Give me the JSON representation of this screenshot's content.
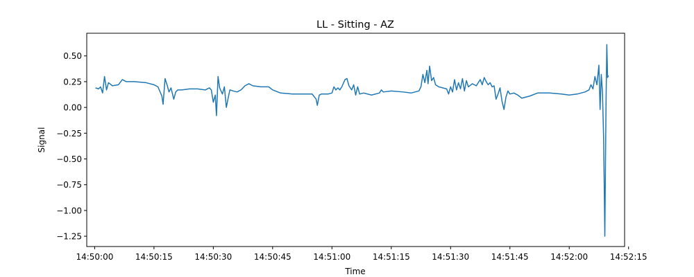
{
  "chart_data": {
    "type": "line",
    "title": "LL - Sitting - AZ",
    "xlabel": "Time",
    "ylabel": "Signal",
    "xlim": [
      "14:49:58",
      "14:52:14"
    ],
    "ylim": [
      -1.35,
      0.72
    ],
    "x_ticks": [
      "14:50:00",
      "14:50:15",
      "14:50:30",
      "14:50:45",
      "14:51:00",
      "14:51:15",
      "14:51:30",
      "14:51:45",
      "14:52:00",
      "14:52:15"
    ],
    "y_ticks": [
      0.5,
      0.25,
      0.0,
      -0.25,
      -0.5,
      -0.75,
      -1.0,
      -1.25
    ],
    "y_tick_labels": [
      "0.50",
      "0.25",
      "0.00",
      "−0.25",
      "−0.50",
      "−0.75",
      "−1.00",
      "−1.25"
    ],
    "grid": false,
    "legend": "none",
    "series": [
      {
        "color": "#1f77b4",
        "points": [
          [
            "14:50:00.2",
            0.19
          ],
          [
            "14:50:01.0",
            0.18
          ],
          [
            "14:50:01.5",
            0.2
          ],
          [
            "14:50:02.0",
            0.14
          ],
          [
            "14:50:02.5",
            0.3
          ],
          [
            "14:50:03.0",
            0.17
          ],
          [
            "14:50:03.5",
            0.24
          ],
          [
            "14:50:04.5",
            0.21
          ],
          [
            "14:50:06.0",
            0.22
          ],
          [
            "14:50:07.0",
            0.27
          ],
          [
            "14:50:08.0",
            0.25
          ],
          [
            "14:50:10.0",
            0.25
          ],
          [
            "14:50:13.0",
            0.24
          ],
          [
            "14:50:15.0",
            0.22
          ],
          [
            "14:50:16.0",
            0.2
          ],
          [
            "14:50:17.0",
            0.11
          ],
          [
            "14:50:17.3",
            0.03
          ],
          [
            "14:50:17.8",
            0.28
          ],
          [
            "14:50:18.3",
            0.22
          ],
          [
            "14:50:18.8",
            0.15
          ],
          [
            "14:50:19.3",
            0.19
          ],
          [
            "14:50:20.0",
            0.08
          ],
          [
            "14:50:20.5",
            0.15
          ],
          [
            "14:50:21.0",
            0.17
          ],
          [
            "14:50:22.0",
            0.17
          ],
          [
            "14:50:24.0",
            0.18
          ],
          [
            "14:50:26.0",
            0.18
          ],
          [
            "14:50:28.0",
            0.17
          ],
          [
            "14:50:29.0",
            0.19
          ],
          [
            "14:50:29.5",
            0.17
          ],
          [
            "14:50:30.0",
            0.05
          ],
          [
            "14:50:30.5",
            0.12
          ],
          [
            "14:50:30.8",
            -0.08
          ],
          [
            "14:50:31.2",
            0.3
          ],
          [
            "14:50:31.6",
            0.19
          ],
          [
            "14:50:32.3",
            0.13
          ],
          [
            "14:50:32.8",
            0.2
          ],
          [
            "14:50:33.3",
            0.0
          ],
          [
            "14:50:33.8",
            0.1
          ],
          [
            "14:50:34.2",
            0.17
          ],
          [
            "14:50:35.0",
            0.16
          ],
          [
            "14:50:36.0",
            0.15
          ],
          [
            "14:50:37.0",
            0.17
          ],
          [
            "14:50:38.0",
            0.21
          ],
          [
            "14:50:39.0",
            0.23
          ],
          [
            "14:50:40.0",
            0.21
          ],
          [
            "14:50:42.0",
            0.2
          ],
          [
            "14:50:44.0",
            0.2
          ],
          [
            "14:50:45.0",
            0.17
          ],
          [
            "14:50:47.0",
            0.14
          ],
          [
            "14:50:50.0",
            0.13
          ],
          [
            "14:50:53.0",
            0.13
          ],
          [
            "14:50:55.0",
            0.13
          ],
          [
            "14:50:56.0",
            0.08
          ],
          [
            "14:50:56.3",
            0.02
          ],
          [
            "14:50:56.8",
            0.12
          ],
          [
            "14:50:57.3",
            0.13
          ],
          [
            "14:50:59.0",
            0.13
          ],
          [
            "14:51:00.0",
            0.14
          ],
          [
            "14:51:00.5",
            0.2
          ],
          [
            "14:51:01.0",
            0.17
          ],
          [
            "14:51:01.5",
            0.19
          ],
          [
            "14:51:02.0",
            0.17
          ],
          [
            "14:51:02.5",
            0.2
          ],
          [
            "14:51:03.3",
            0.27
          ],
          [
            "14:51:03.8",
            0.28
          ],
          [
            "14:51:04.3",
            0.21
          ],
          [
            "14:51:05.0",
            0.17
          ],
          [
            "14:51:05.5",
            0.22
          ],
          [
            "14:51:06.0",
            0.12
          ],
          [
            "14:51:06.5",
            0.2
          ],
          [
            "14:51:07.0",
            0.13
          ],
          [
            "14:51:08.0",
            0.14
          ],
          [
            "14:51:10.0",
            0.12
          ],
          [
            "14:51:12.0",
            0.14
          ],
          [
            "14:51:12.5",
            0.17
          ],
          [
            "14:51:13.0",
            0.15
          ],
          [
            "14:51:15.0",
            0.16
          ],
          [
            "14:51:18.0",
            0.15
          ],
          [
            "14:51:20.0",
            0.14
          ],
          [
            "14:51:22.0",
            0.16
          ],
          [
            "14:51:22.5",
            0.2
          ],
          [
            "14:51:23.0",
            0.32
          ],
          [
            "14:51:23.5",
            0.24
          ],
          [
            "14:51:24.0",
            0.36
          ],
          [
            "14:51:24.3",
            0.23
          ],
          [
            "14:51:24.7",
            0.4
          ],
          [
            "14:51:25.2",
            0.26
          ],
          [
            "14:51:25.7",
            0.29
          ],
          [
            "14:51:26.2",
            0.22
          ],
          [
            "14:51:27.0",
            0.2
          ],
          [
            "14:51:28.0",
            0.19
          ],
          [
            "14:51:29.0",
            0.18
          ],
          [
            "14:51:29.5",
            0.13
          ],
          [
            "14:51:30.0",
            0.2
          ],
          [
            "14:51:30.5",
            0.15
          ],
          [
            "14:51:31.0",
            0.27
          ],
          [
            "14:51:31.5",
            0.17
          ],
          [
            "14:51:32.0",
            0.24
          ],
          [
            "14:51:32.5",
            0.18
          ],
          [
            "14:51:33.0",
            0.28
          ],
          [
            "14:51:33.5",
            0.16
          ],
          [
            "14:51:34.0",
            0.26
          ],
          [
            "14:51:34.5",
            0.2
          ],
          [
            "14:51:35.5",
            0.23
          ],
          [
            "14:51:36.5",
            0.21
          ],
          [
            "14:51:37.5",
            0.27
          ],
          [
            "14:51:38.0",
            0.22
          ],
          [
            "14:51:38.5",
            0.29
          ],
          [
            "14:51:39.0",
            0.25
          ],
          [
            "14:51:39.5",
            0.22
          ],
          [
            "14:51:40.0",
            0.24
          ],
          [
            "14:51:40.5",
            0.2
          ],
          [
            "14:51:41.0",
            0.21
          ],
          [
            "14:51:41.5",
            0.08
          ],
          [
            "14:51:42.0",
            0.13
          ],
          [
            "14:51:42.5",
            0.19
          ],
          [
            "14:51:43.0",
            0.06
          ],
          [
            "14:51:43.5",
            -0.02
          ],
          [
            "14:51:44.0",
            0.1
          ],
          [
            "14:51:44.5",
            0.16
          ],
          [
            "14:51:45.0",
            0.13
          ],
          [
            "14:51:46.0",
            0.14
          ],
          [
            "14:51:47.0",
            0.12
          ],
          [
            "14:51:48.0",
            0.09
          ],
          [
            "14:51:50.0",
            0.11
          ],
          [
            "14:51:52.0",
            0.14
          ],
          [
            "14:51:55.0",
            0.14
          ],
          [
            "14:51:58.0",
            0.13
          ],
          [
            "14:52:00.0",
            0.12
          ],
          [
            "14:52:02.0",
            0.13
          ],
          [
            "14:52:04.0",
            0.15
          ],
          [
            "14:52:05.0",
            0.17
          ],
          [
            "14:52:05.5",
            0.22
          ],
          [
            "14:52:06.0",
            0.18
          ],
          [
            "14:52:06.5",
            0.3
          ],
          [
            "14:52:07.0",
            0.22
          ],
          [
            "14:52:07.5",
            0.41
          ],
          [
            "14:52:07.8",
            -0.02
          ],
          [
            "14:52:08.1",
            0.32
          ],
          [
            "14:52:08.4",
            0.15
          ],
          [
            "14:52:08.7",
            -0.3
          ],
          [
            "14:52:09.0",
            -1.25
          ],
          [
            "14:52:09.3",
            0.03
          ],
          [
            "14:52:09.5",
            0.61
          ],
          [
            "14:52:09.7",
            0.29
          ],
          [
            "14:52:09.9",
            0.31
          ]
        ]
      }
    ]
  }
}
